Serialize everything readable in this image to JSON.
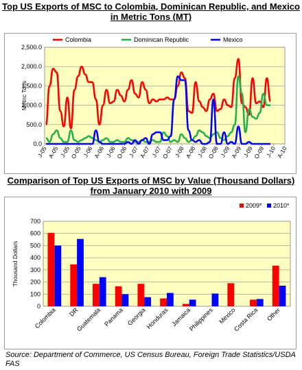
{
  "chart_data": [
    {
      "type": "line",
      "title": "Top US Exports of MSC to Colombia, Dominican Republic, and Mexico in Metric Tons (MT)",
      "ylabel": "Metric Tons",
      "xlabel": "",
      "ylim": [
        0,
        2500
      ],
      "yticks": [
        "0.0",
        "500.0",
        "1,000.0",
        "1,500.0",
        "2,000.0",
        "2,500.0"
      ],
      "xticks": [
        "J-05",
        "A-05",
        "J-05",
        "O-05",
        "J-06",
        "A-06",
        "J-06",
        "O-06",
        "J-07",
        "A-07",
        "J-07",
        "O-07",
        "J-08",
        "A-08",
        "J-08",
        "O-08",
        "J-09",
        "A-09",
        "J-09",
        "O-09",
        "J-10",
        "A-10"
      ],
      "grid": true,
      "legend": "top",
      "colors": {
        "Colombia": "#ff0000",
        "Dominican Republic": "#22b04b",
        "Mexico": "#0000ff",
        "plot_bg": "#ffffc0"
      },
      "series": [
        {
          "name": "Colombia",
          "values": [
            500,
            1500,
            1950,
            1850,
            850,
            450,
            1200,
            400,
            1400,
            1750,
            2000,
            1800,
            1600,
            1600,
            1150,
            500,
            1000,
            1400,
            1050,
            1100,
            1400,
            1250,
            1100,
            1400,
            1650,
            1300,
            1200,
            1600,
            1400,
            1050,
            1150,
            1100,
            1150,
            1150,
            1200,
            1150,
            1150,
            1500,
            1850,
            1700,
            850,
            800,
            1600,
            1100,
            950,
            850,
            1150,
            1300,
            850,
            900,
            1150,
            1000,
            950,
            1700,
            2200,
            1050,
            950,
            750,
            1700,
            1050,
            1100,
            950,
            1700,
            1100
          ]
        },
        {
          "name": "Dominican Republic",
          "values": [
            150,
            50,
            250,
            350,
            150,
            50,
            50,
            350,
            100,
            50,
            100,
            150,
            200,
            150,
            100,
            50,
            100,
            150,
            50,
            50,
            100,
            50,
            50,
            150,
            100,
            50,
            50,
            100,
            50,
            50,
            100,
            50,
            50,
            300,
            200,
            50,
            100,
            50,
            250,
            150,
            50,
            100,
            200,
            350,
            300,
            200,
            150,
            250,
            300,
            150,
            100,
            200,
            300,
            500,
            1750,
            1300,
            300,
            900,
            700,
            650,
            800,
            1300,
            1000,
            1000
          ]
        },
        {
          "name": "Mexico",
          "values": [
            0,
            0,
            0,
            0,
            0,
            0,
            0,
            0,
            0,
            0,
            0,
            0,
            0,
            0,
            350,
            50,
            0,
            0,
            0,
            0,
            0,
            0,
            0,
            50,
            0,
            100,
            0,
            100,
            150,
            0,
            250,
            300,
            300,
            100,
            100,
            200,
            1150,
            1750,
            1650,
            1650,
            350,
            100,
            50,
            100,
            0,
            0,
            50,
            1150,
            0,
            0,
            300,
            0,
            50,
            0,
            450,
            0,
            0,
            50,
            0,
            0,
            0,
            0,
            0,
            0
          ]
        }
      ]
    },
    {
      "type": "bar",
      "title": "Comparison of Top US Exports of MSC by Value (Thousand Dollars) from January 2010 with 2009",
      "ylabel": "Thousand Dollars",
      "xlabel": "",
      "ylim": [
        0,
        700
      ],
      "yticks": [
        "0",
        "100",
        "200",
        "300",
        "400",
        "500",
        "600",
        "700"
      ],
      "categories": [
        "Colombia",
        "DR",
        "Guatemala",
        "Panama",
        "Georgia",
        "Honduras",
        "Jamaica",
        "Philippines",
        "Mexico",
        "Costa Rica",
        "Other"
      ],
      "grid": true,
      "legend": "top-right",
      "colors": {
        "2009*": "#ff0000",
        "2010*": "#0000ff",
        "plot_bg": "#ffffc0"
      },
      "series": [
        {
          "name": "2009*",
          "values": [
            605,
            345,
            185,
            165,
            185,
            65,
            20,
            0,
            190,
            55,
            335
          ]
        },
        {
          "name": "2010*",
          "values": [
            500,
            555,
            240,
            100,
            75,
            110,
            55,
            105,
            0,
            60,
            170
          ]
        }
      ]
    }
  ],
  "source": "Source: Department of Commerce, US Census Bureau, Foreign Trade Statistics/USDA FAS"
}
